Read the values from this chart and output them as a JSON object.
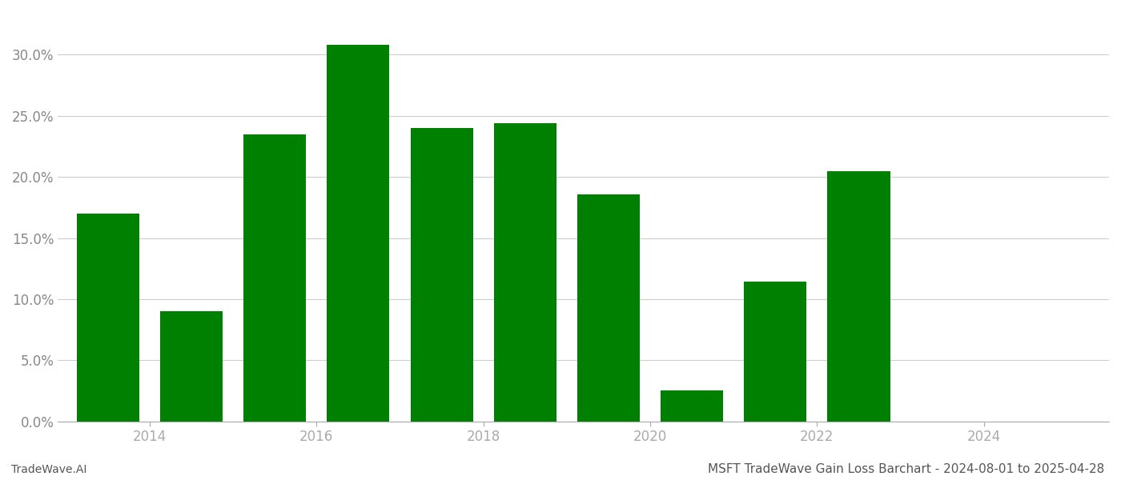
{
  "bar_positions": [
    2013,
    2014,
    2015,
    2016,
    2017,
    2018,
    2019,
    2020,
    2021,
    2022,
    2023,
    2024
  ],
  "values": [
    0.17,
    0.09,
    0.235,
    0.308,
    0.24,
    0.244,
    0.186,
    0.025,
    0.114,
    0.205,
    0.0,
    0.0
  ],
  "bar_color": "#008000",
  "background_color": "#ffffff",
  "grid_color": "#cccccc",
  "axis_color": "#aaaaaa",
  "tick_color": "#888888",
  "ylim": [
    0,
    0.335
  ],
  "yticks": [
    0.0,
    0.05,
    0.1,
    0.15,
    0.2,
    0.25,
    0.3
  ],
  "xtick_positions": [
    2013.5,
    2015.5,
    2017.5,
    2019.5,
    2021.5,
    2023.5
  ],
  "xtick_labels": [
    "2014",
    "2016",
    "2018",
    "2020",
    "2022",
    "2024"
  ],
  "xlim": [
    2012.4,
    2025.0
  ],
  "title": "MSFT TradeWave Gain Loss Barchart - 2024-08-01 to 2025-04-28",
  "footer_left": "TradeWave.AI",
  "title_fontsize": 11,
  "footer_fontsize": 10,
  "tick_fontsize": 12,
  "bar_width": 0.75
}
